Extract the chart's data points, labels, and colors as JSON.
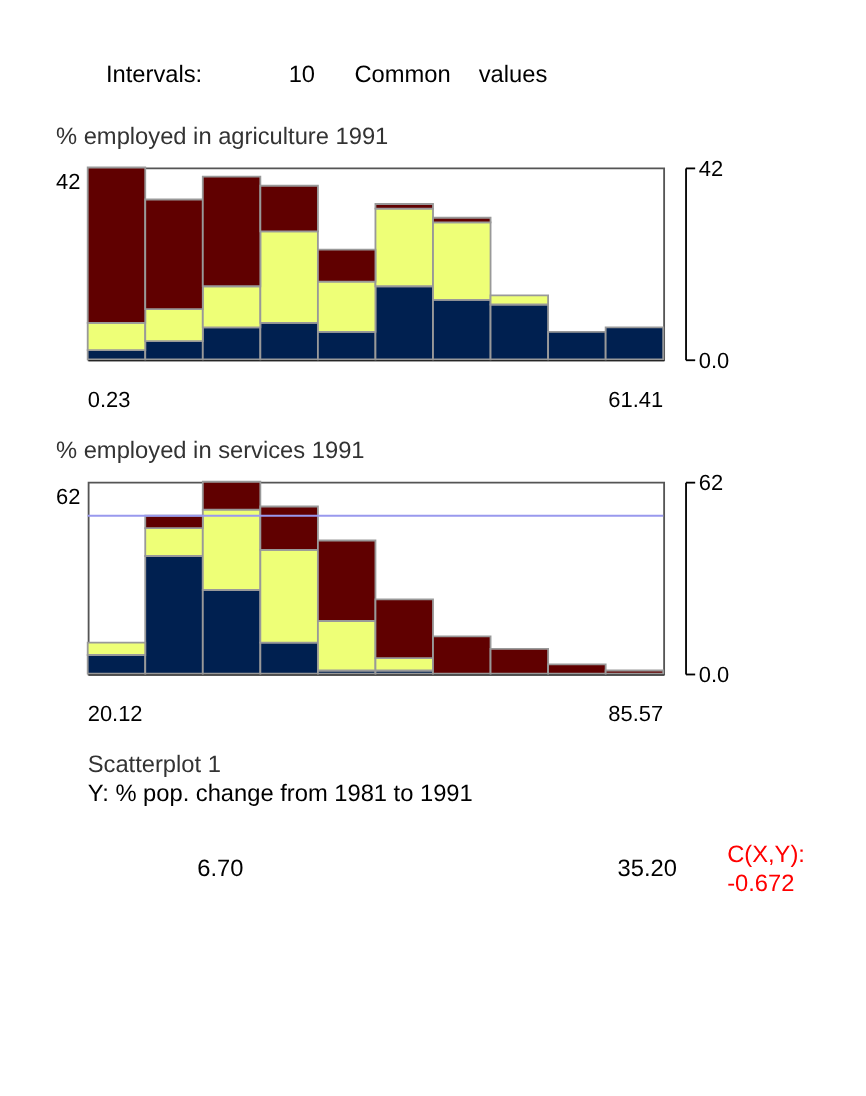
{
  "chart_data": [
    {
      "type": "other",
      "annotations": [
        "Intervals:",
        "10",
        "Common",
        "values"
      ]
    },
    {
      "type": "bar",
      "title": "% employed in agriculture 1991",
      "stacked": true,
      "grid": false,
      "categories": [
        null,
        null,
        null,
        null,
        null,
        null,
        null,
        null,
        null,
        null
      ],
      "series": [
        {
          "color": "#002050",
          "values": [
            2,
            4,
            7,
            8,
            6,
            16,
            13,
            12,
            6,
            7
          ]
        },
        {
          "color": "#eeff77",
          "values": [
            6,
            7,
            9,
            20,
            11,
            17,
            17,
            2,
            null,
            null
          ]
        },
        {
          "color": "#600000",
          "values": [
            34,
            24,
            24,
            10,
            7,
            1,
            1,
            null,
            null,
            null
          ]
        }
      ],
      "ylim": [
        0,
        42
      ],
      "yticks": [
        42,
        {
          "value": 0,
          "label": "0.0"
        }
      ],
      "annotations": [
        "42",
        "0.23",
        "61.41"
      ]
    },
    {
      "type": "bar",
      "title": "% employed in services 1991",
      "stacked": true,
      "grid": false,
      "categories": [
        null,
        null,
        null,
        null,
        null,
        null,
        null,
        null,
        null,
        null
      ],
      "series": [
        {
          "color": "#002050",
          "values": [
            6,
            38,
            27,
            10,
            1,
            1,
            null,
            null,
            null,
            null
          ]
        },
        {
          "color": "#eeff77",
          "values": [
            4,
            9,
            26,
            30,
            16,
            4,
            null,
            null,
            null,
            null
          ]
        },
        {
          "color": "#600000",
          "values": [
            null,
            4,
            9,
            14,
            26,
            19,
            12,
            8,
            3,
            1
          ]
        }
      ],
      "ref_lines": [
        {
          "axis": "y",
          "value": 51,
          "color": "#9999ee"
        }
      ],
      "ylim": [
        0,
        62
      ],
      "yticks": [
        62,
        {
          "value": 0,
          "label": "0.0"
        }
      ],
      "annotations": [
        "62",
        "20.12",
        "85.57"
      ]
    },
    {
      "type": "other",
      "title": "Scatterplot 1",
      "subtitle": "Y: % pop. change from 1981 to 1991",
      "annotations": [
        "6.70",
        "35.20",
        "C(X,Y):",
        "-0.672"
      ],
      "colors": [
        "#000000",
        "#000000",
        "#ff0000",
        "#ff0000"
      ]
    }
  ]
}
